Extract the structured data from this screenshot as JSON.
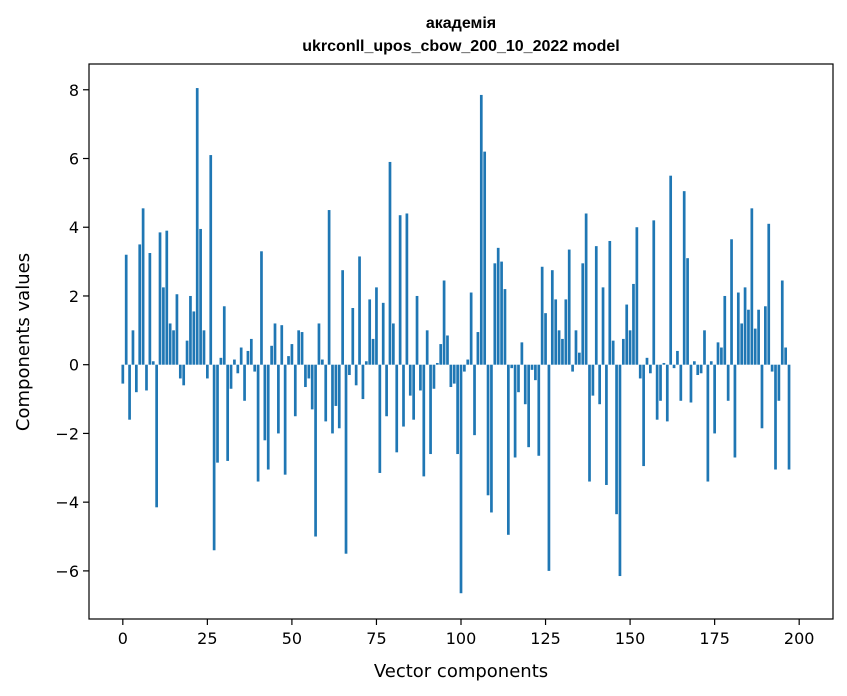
{
  "chart_data": {
    "type": "bar",
    "title_line1": "академія",
    "title_line2": "ukrconll_upos_cbow_200_10_2022 model",
    "xlabel": "Vector components",
    "ylabel": "Components values",
    "xlim": [
      -10,
      210
    ],
    "ylim": [
      -7.4,
      8.75
    ],
    "xticks": [
      0,
      25,
      50,
      75,
      100,
      125,
      150,
      175,
      200
    ],
    "yticks": [
      -6,
      -4,
      -2,
      0,
      2,
      4,
      6,
      8
    ],
    "ytick_labels": [
      "−6",
      "−4",
      "−2",
      "0",
      "2",
      "4",
      "6",
      "8"
    ],
    "grid": false,
    "bar_color": "#1f77b4",
    "values": [
      -0.55,
      3.2,
      -1.6,
      1.0,
      -0.8,
      3.5,
      4.55,
      -0.75,
      3.25,
      0.1,
      -4.15,
      3.85,
      2.25,
      3.9,
      1.2,
      1.0,
      2.05,
      -0.4,
      -0.6,
      0.7,
      2.0,
      1.55,
      8.05,
      3.95,
      1.0,
      -0.4,
      6.1,
      -5.4,
      -2.85,
      0.2,
      1.7,
      -2.8,
      -0.7,
      0.15,
      -0.25,
      0.5,
      -1.05,
      0.4,
      0.75,
      -0.2,
      -3.4,
      3.3,
      -2.2,
      -3.05,
      0.55,
      1.2,
      -2.0,
      1.15,
      -3.2,
      0.25,
      0.6,
      -1.5,
      1.0,
      0.95,
      -0.65,
      -0.4,
      -1.3,
      -5.0,
      1.2,
      0.15,
      -1.65,
      4.5,
      -2.0,
      -1.2,
      -1.85,
      2.75,
      -5.5,
      -0.3,
      1.65,
      -0.6,
      3.15,
      -1.0,
      0.1,
      1.9,
      0.75,
      2.25,
      -3.15,
      1.8,
      -1.5,
      5.9,
      1.2,
      -2.55,
      4.35,
      -1.8,
      4.4,
      -0.9,
      -1.6,
      2.0,
      -0.75,
      -3.25,
      1.0,
      -2.6,
      -0.7,
      0.05,
      0.6,
      2.45,
      0.85,
      -0.65,
      -0.55,
      -2.6,
      -6.65,
      -0.2,
      0.15,
      2.1,
      -2.05,
      0.95,
      7.85,
      6.2,
      -3.8,
      -4.3,
      2.95,
      3.4,
      3.0,
      2.2,
      -4.95,
      -0.1,
      -2.7,
      -0.8,
      0.65,
      -1.15,
      -2.4,
      -0.15,
      -0.45,
      -2.65,
      2.85,
      1.5,
      -6.0,
      2.75,
      1.9,
      1.0,
      0.75,
      1.9,
      3.35,
      -0.2,
      1.0,
      0.35,
      2.95,
      4.4,
      -3.4,
      -0.9,
      3.45,
      -1.15,
      2.25,
      -3.5,
      3.6,
      0.7,
      -4.35,
      -6.15,
      0.75,
      1.75,
      1.0,
      2.35,
      4.0,
      -0.4,
      -2.95,
      0.2,
      -0.25,
      4.2,
      -1.6,
      -1.05,
      0.05,
      -1.65,
      5.5,
      -0.1,
      0.4,
      -1.05,
      5.05,
      3.1,
      -1.1,
      0.1,
      -0.3,
      -0.25,
      1.0,
      -3.4,
      0.1,
      -2.0,
      0.65,
      0.5,
      2.0,
      -1.05,
      3.65,
      -2.7,
      2.1,
      1.2,
      2.25,
      1.6,
      4.55,
      1.05,
      1.6,
      -1.85,
      1.7,
      4.1,
      -0.2,
      -3.05,
      -1.05,
      2.45,
      0.5,
      -3.05
    ]
  }
}
